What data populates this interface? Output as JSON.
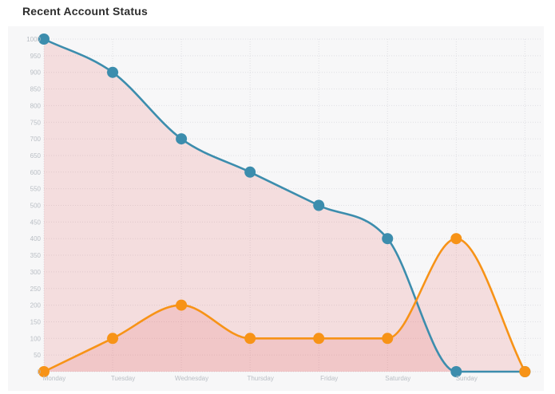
{
  "header": {
    "title": "Recent Account Status"
  },
  "chart_data": {
    "type": "area",
    "title": "Recent Account Status",
    "categories": [
      "Monday",
      "Tuesday",
      "Wednesday",
      "Thursday",
      "Friday",
      "Saturday",
      "Sunday",
      ""
    ],
    "series": [
      {
        "name": "blue",
        "color": "#3c8dad",
        "values": [
          1000,
          900,
          700,
          600,
          500,
          400,
          0,
          0
        ]
      },
      {
        "name": "orange",
        "color": "#f79317",
        "values": [
          0,
          100,
          200,
          100,
          100,
          100,
          400,
          0
        ]
      }
    ],
    "area_fill": "rgba(230,90,90,0.16)",
    "xlabel": "",
    "ylabel": "",
    "ylim": [
      0,
      1000
    ],
    "y_ticks": [
      1000,
      950,
      900,
      850,
      800,
      750,
      700,
      650,
      600,
      550,
      500,
      450,
      400,
      350,
      300,
      250,
      200,
      150,
      100,
      50,
      0
    ],
    "grid": true,
    "grid_style": "dotted",
    "smooth": true,
    "legend_position": "none",
    "colors": {
      "plot_background": "#f7f7f8",
      "page_background": "#ffffff",
      "gridline": "#dfdfe3",
      "tick_label": "#b9bec4",
      "title_text": "#2d2d2d"
    }
  }
}
